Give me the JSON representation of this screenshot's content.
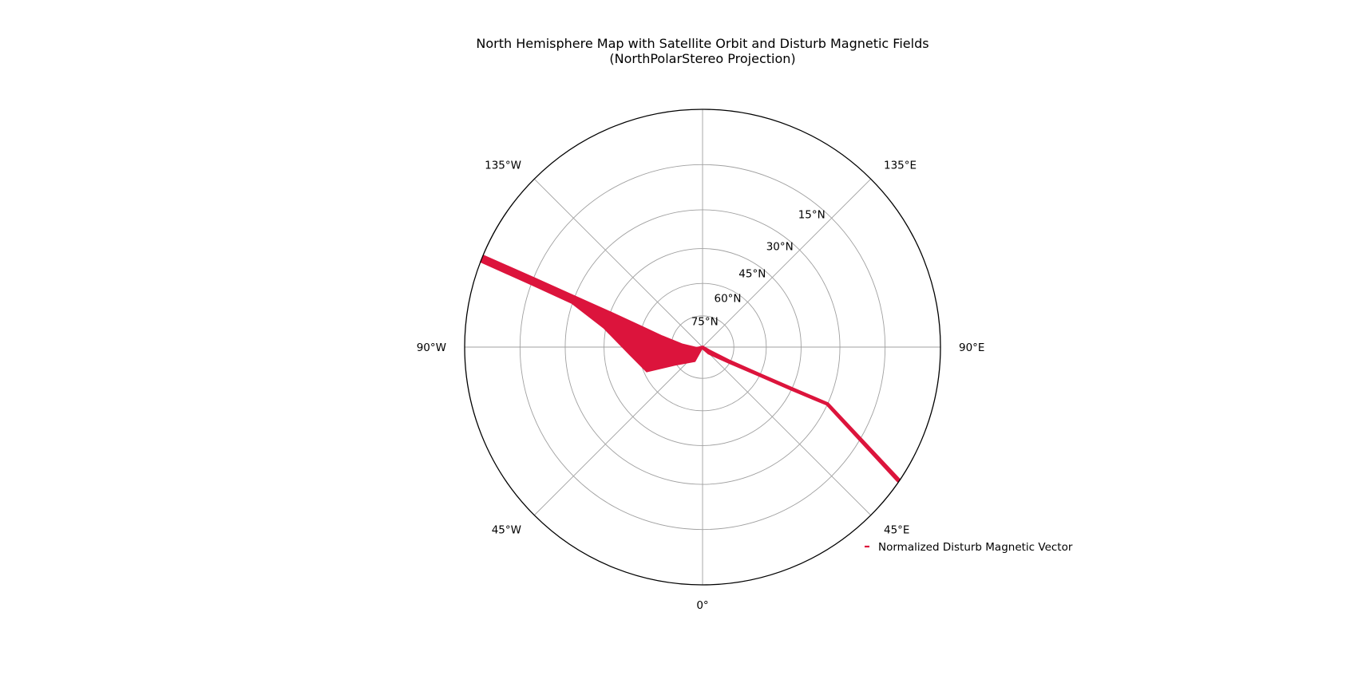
{
  "chart_data": {
    "type": "polar-map",
    "title": "North Hemisphere Map with Satellite Orbit and Disturb Magnetic Fields",
    "subtitle": "(NorthPolarStereo Projection)",
    "projection": "NorthPolarStereo",
    "latitude_range": [
      0,
      90
    ],
    "latitude_ticks": [
      {
        "lat": 15,
        "label": "15°N"
      },
      {
        "lat": 30,
        "label": "30°N"
      },
      {
        "lat": 45,
        "label": "45°N"
      },
      {
        "lat": 60,
        "label": "60°N"
      },
      {
        "lat": 75,
        "label": "75°N"
      }
    ],
    "longitude_ticks": [
      {
        "lon": 0,
        "label": "0°"
      },
      {
        "lon": 45,
        "label": "45°E"
      },
      {
        "lon": 90,
        "label": "90°E"
      },
      {
        "lon": 135,
        "label": "135°E"
      },
      {
        "lon": 180,
        "label": ""
      },
      {
        "lon": -135,
        "label": "135°W"
      },
      {
        "lon": -90,
        "label": "90°W"
      },
      {
        "lon": -45,
        "label": "45°W"
      }
    ],
    "grid": true,
    "legend": {
      "placement": "lower-right",
      "entries": [
        {
          "label": "Normalized Disturb Magnetic Vector",
          "color": "#dc143c"
        }
      ]
    },
    "series": [
      {
        "name": "Normalized Disturb Magnetic Vector",
        "color": "#dc143c",
        "track": [
          {
            "lon": -112.5,
            "lat": 0
          },
          {
            "lon": -112.1,
            "lat": 15
          },
          {
            "lon": -111.4,
            "lat": 30
          },
          {
            "lon": -110.3,
            "lat": 45
          },
          {
            "lon": -107.9,
            "lat": 60
          },
          {
            "lon": -104.1,
            "lat": 70
          },
          {
            "lon": -96.0,
            "lat": 80
          },
          {
            "lon": -77.0,
            "lat": 87
          },
          {
            "lon": 0.0,
            "lat": 90
          },
          {
            "lon": 60.0,
            "lat": 86
          },
          {
            "lon": 62.4,
            "lat": 75
          },
          {
            "lon": 64.3,
            "lat": 60
          },
          {
            "lon": 65.1,
            "lat": 45
          },
          {
            "lon": 65.6,
            "lat": 30
          },
          {
            "lon": 55.9,
            "lat": 0
          }
        ],
        "disturbance": [
          {
            "lat": 0,
            "value": 0.05
          },
          {
            "lat": 30,
            "value": 0.06
          },
          {
            "lat": 55,
            "value": 0.07
          },
          {
            "lat": 63,
            "value": 0.35
          },
          {
            "lat": 66,
            "value": 0.75
          },
          {
            "lat": 68,
            "value": 1.0
          },
          {
            "lat": 70,
            "value": 0.5
          },
          {
            "lat": 72,
            "value": 0.25
          },
          {
            "lat": 80,
            "value": 0.1
          },
          {
            "lat": 84,
            "value": 0.45
          },
          {
            "lat": 87,
            "value": 0.2
          },
          {
            "lat": 90,
            "value": 0.1
          },
          {
            "lat": 86,
            "value": 0.15
          },
          {
            "lat": 75,
            "value": 0.1
          },
          {
            "lat": 70,
            "value": 0.3
          },
          {
            "lat": 60,
            "value": 0.12
          },
          {
            "lat": 30,
            "value": 0.1
          },
          {
            "lat": 0,
            "value": 0.1
          }
        ]
      }
    ]
  }
}
